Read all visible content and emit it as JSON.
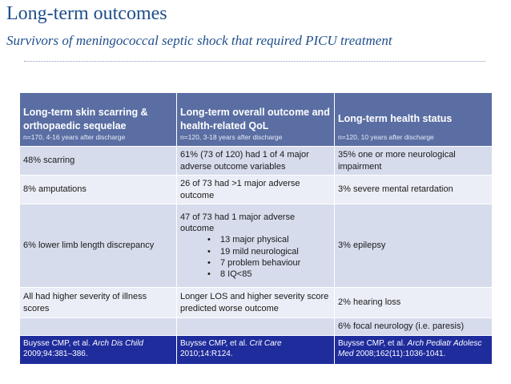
{
  "title": "Long-term outcomes",
  "subtitle": "Survivors of meningococcal septic shock that required PICU treatment",
  "table": {
    "headers": [
      {
        "title": "Long-term skin scarring & orthopaedic sequelae",
        "sub": "n=170, 4-16 years after discharge"
      },
      {
        "title": "Long-term overall outcome and health-related QoL",
        "sub": "n=120, 3-18 years after discharge"
      },
      {
        "title": "Long-term health status",
        "sub": "n=120, 10 years after discharge"
      }
    ],
    "rows": [
      [
        "48% scarring",
        "61% (73 of 120) had 1 of 4 major adverse outcome variables",
        "35% one or more neurological impairment"
      ],
      [
        "8% amputations",
        "26 of 73 had >1 major adverse outcome",
        "3% severe mental retardation"
      ],
      {
        "col1": "6% lower limb length discrepancy",
        "col2_intro": "47 of 73 had 1 major adverse outcome",
        "col2_bullets": [
          "13 major physical",
          "19 mild neurological",
          "7 problem behaviour",
          "8 IQ<85"
        ],
        "col3": "3% epilepsy"
      },
      [
        "All had higher severity of illness scores",
        "Longer LOS and higher severity score predicted worse outcome",
        "2% hearing loss"
      ],
      [
        "",
        "",
        "6% focal neurology (i.e. paresis)"
      ]
    ],
    "references": [
      {
        "authors": "Buysse CMP, et al. ",
        "journal": "Arch Dis Child",
        "details": " 2009;94:381–386."
      },
      {
        "authors": "Buysse CMP, et al. ",
        "journal": "Crit Care",
        "details": " 2010;14:R124."
      },
      {
        "authors": "Buysse CMP, et al. ",
        "journal": "Arch Pediatr Adolesc Med",
        "details": " 2008;162(11):1036-1041."
      }
    ]
  }
}
